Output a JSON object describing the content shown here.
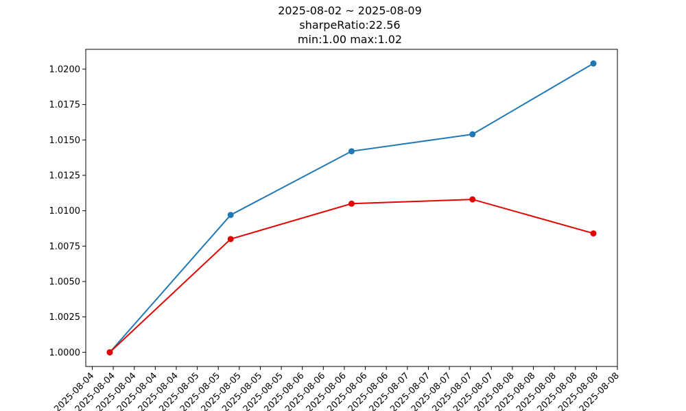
{
  "chart_data": {
    "type": "line",
    "title_lines": [
      "2025-08-02 ~ 2025-08-09",
      "sharpeRatio:22.56",
      "min:1.00 max:1.02"
    ],
    "xlabel": "",
    "ylabel": "",
    "x_tick_labels": [
      "2025-08-04",
      "2025-08-04",
      "2025-08-04",
      "2025-08-04",
      "2025-08-04",
      "2025-08-05",
      "2025-08-05",
      "2025-08-05",
      "2025-08-05",
      "2025-08-05",
      "2025-08-06",
      "2025-08-06",
      "2025-08-06",
      "2025-08-06",
      "2025-08-06",
      "2025-08-07",
      "2025-08-07",
      "2025-08-07",
      "2025-08-07",
      "2025-08-07",
      "2025-08-08",
      "2025-08-08",
      "2025-08-08",
      "2025-08-08",
      "2025-08-08",
      "2025-08-08"
    ],
    "y_ticks": [
      1.0,
      1.0025,
      1.005,
      1.0075,
      1.01,
      1.0125,
      1.015,
      1.0175,
      1.02
    ],
    "y_tick_labels": [
      "1.0000",
      "1.0025",
      "1.0050",
      "1.0075",
      "1.0100",
      "1.0125",
      "1.0150",
      "1.0175",
      "1.0200"
    ],
    "ylim": [
      0.999,
      1.0214
    ],
    "x_points": [
      "2025-08-04",
      "2025-08-05",
      "2025-08-06",
      "2025-08-07",
      "2025-08-08"
    ],
    "series": [
      {
        "color": "#1f77b4",
        "values": [
          1.0,
          1.0097,
          1.0142,
          1.0154,
          1.0204
        ]
      },
      {
        "color": "#e50000",
        "values": [
          1.0,
          1.008,
          1.0105,
          1.0108,
          1.0084
        ]
      }
    ],
    "grid": false,
    "marker": "circle"
  }
}
